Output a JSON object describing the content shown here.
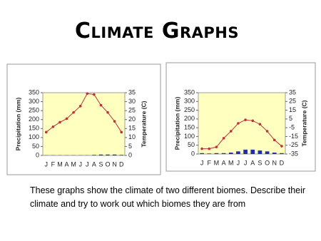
{
  "title": "Climate Graphs",
  "text": "These graphs show the climate of two different biomes. Describe their climate and try to work out which biomes they are from",
  "chart_data": [
    {
      "type": "bar",
      "y_label": "Precipitation (mm)",
      "y2_label": "Temperature (C)",
      "categories": [
        "J",
        "F",
        "M",
        "A",
        "M",
        "J",
        "J",
        "A",
        "S",
        "O",
        "N",
        "D"
      ],
      "ylim": [
        0,
        350
      ],
      "yticks": [
        0,
        50,
        100,
        150,
        200,
        250,
        300,
        350
      ],
      "y2lim": [
        0,
        35
      ],
      "y2ticks": [
        0,
        5,
        10,
        15,
        20,
        25,
        30,
        35
      ],
      "background": "#ffffc0",
      "series": [
        {
          "name": "Precipitation",
          "color": "#1f2fa8",
          "values": [
            1,
            1,
            1,
            1,
            1,
            1,
            1,
            3,
            5,
            5,
            5,
            3
          ]
        },
        {
          "name": "Temperature",
          "color": "#c0303a",
          "axis": "y2",
          "values": [
            13,
            16,
            18.5,
            20.5,
            24,
            27.5,
            34.5,
            34,
            28,
            24,
            19,
            13
          ]
        }
      ]
    },
    {
      "type": "bar",
      "y_label": "Precipitation (mm)",
      "y2_label": "Temperature (C)",
      "categories": [
        "J",
        "F",
        "M",
        "A",
        "M",
        "J",
        "J",
        "A",
        "S",
        "O",
        "N",
        "D"
      ],
      "ylim": [
        0,
        350
      ],
      "yticks": [
        0,
        50,
        100,
        150,
        200,
        250,
        300,
        350
      ],
      "y2lim": [
        -35,
        35
      ],
      "y2ticks": [
        -35,
        -25,
        -15,
        -5,
        5,
        15,
        25,
        35
      ],
      "background": "#ffffc0",
      "series": [
        {
          "name": "Precipitation",
          "color": "#1f2fa8",
          "values": [
            5,
            3,
            5,
            5,
            8,
            15,
            25,
            25,
            20,
            15,
            8,
            5
          ]
        },
        {
          "name": "Temperature",
          "color": "#c0303a",
          "axis": "y2",
          "values": [
            -29,
            -29,
            -27,
            -17,
            -9,
            0,
            4,
            3,
            -1,
            -9,
            -19,
            -26
          ]
        }
      ]
    }
  ]
}
